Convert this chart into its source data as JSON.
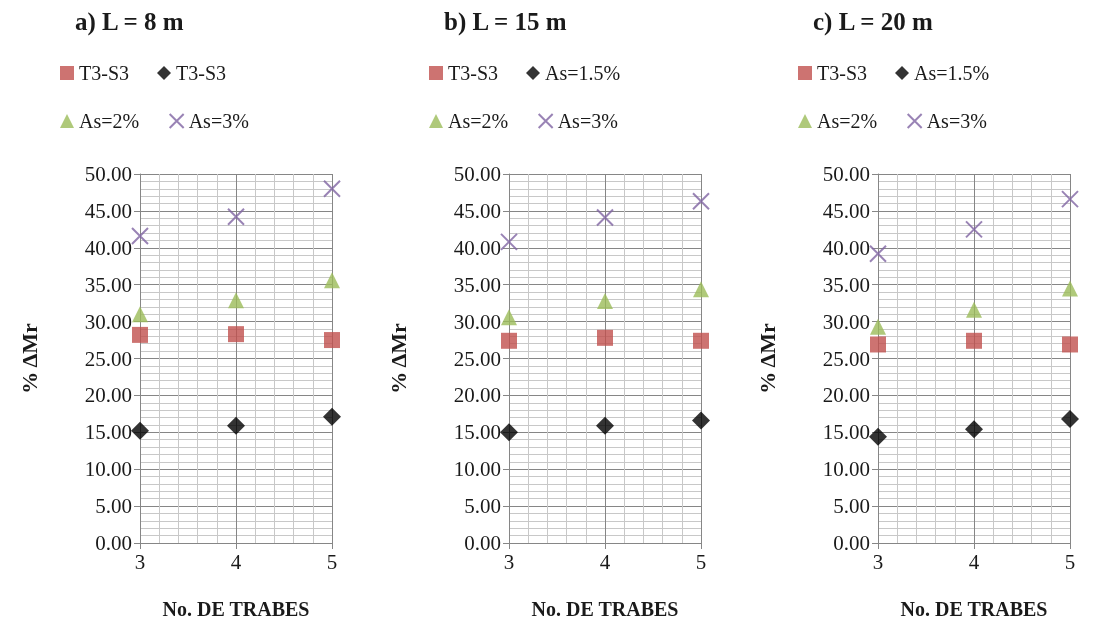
{
  "chart_data": [
    {
      "type": "scatter",
      "title": "a) L = 8 m",
      "xlabel": "No. DE TRABES",
      "ylabel": "% ΔMr",
      "x": [
        3,
        4,
        5
      ],
      "xlim": [
        3,
        5
      ],
      "xticks": [
        3,
        4,
        5
      ],
      "ylim": [
        0,
        50
      ],
      "yticks": [
        {
          "value": 0,
          "label": "0.00"
        },
        {
          "value": 5,
          "label": "5.00"
        },
        {
          "value": 10,
          "label": "10.00"
        },
        {
          "value": 15,
          "label": "15.00"
        },
        {
          "value": 20,
          "label": "20.00"
        },
        {
          "value": 25,
          "label": "25.00"
        },
        {
          "value": 30,
          "label": "30.00"
        },
        {
          "value": 35,
          "label": "35.00"
        },
        {
          "value": 40,
          "label": "40.00"
        },
        {
          "value": 45,
          "label": "45.00"
        },
        {
          "value": 50,
          "label": "50.00"
        }
      ],
      "grid": true,
      "legend": "top",
      "series": [
        {
          "name": "T3-S3",
          "color": "#c0504d",
          "marker": "square",
          "values": [
            28.2,
            28.3,
            27.5
          ]
        },
        {
          "name": "T3-S3",
          "color": "#000000",
          "marker": "diamond",
          "values": [
            15.2,
            15.9,
            17.1
          ]
        },
        {
          "name": "As=2%",
          "color": "#9bbb59",
          "marker": "triangle",
          "values": [
            31.0,
            32.9,
            35.6
          ]
        },
        {
          "name": "As=3%",
          "color": "#8064a2",
          "marker": "cross",
          "values": [
            41.6,
            44.2,
            48.0
          ]
        }
      ]
    },
    {
      "type": "scatter",
      "title": "b) L = 15 m",
      "xlabel": "No. DE TRABES",
      "ylabel": "% ΔMr",
      "x": [
        3,
        4,
        5
      ],
      "xlim": [
        3,
        5
      ],
      "xticks": [
        3,
        4,
        5
      ],
      "ylim": [
        0,
        50
      ],
      "yticks": [
        {
          "value": 0,
          "label": "0.00"
        },
        {
          "value": 5,
          "label": "5.00"
        },
        {
          "value": 10,
          "label": "10.00"
        },
        {
          "value": 15,
          "label": "15.00"
        },
        {
          "value": 20,
          "label": "20.00"
        },
        {
          "value": 25,
          "label": "25.00"
        },
        {
          "value": 30,
          "label": "30.00"
        },
        {
          "value": 35,
          "label": "35.00"
        },
        {
          "value": 40,
          "label": "40.00"
        },
        {
          "value": 45,
          "label": "45.00"
        },
        {
          "value": 50,
          "label": "50.00"
        }
      ],
      "grid": true,
      "legend": "top",
      "series": [
        {
          "name": "T3-S3",
          "color": "#c0504d",
          "marker": "square",
          "values": [
            27.4,
            27.8,
            27.4
          ]
        },
        {
          "name": "As=1.5%",
          "color": "#000000",
          "marker": "diamond",
          "values": [
            15.0,
            15.9,
            16.6
          ]
        },
        {
          "name": "As=2%",
          "color": "#9bbb59",
          "marker": "triangle",
          "values": [
            30.6,
            32.8,
            34.4
          ]
        },
        {
          "name": "As=3%",
          "color": "#8064a2",
          "marker": "cross",
          "values": [
            40.8,
            44.1,
            46.3
          ]
        }
      ]
    },
    {
      "type": "scatter",
      "title": "c) L = 20 m",
      "xlabel": "No. DE TRABES",
      "ylabel": "% ΔMr",
      "x": [
        3,
        4,
        5
      ],
      "xlim": [
        3,
        5
      ],
      "xticks": [
        3,
        4,
        5
      ],
      "ylim": [
        0,
        50
      ],
      "yticks": [
        {
          "value": 0,
          "label": "0.00"
        },
        {
          "value": 5,
          "label": "5.00"
        },
        {
          "value": 10,
          "label": "10.00"
        },
        {
          "value": 15,
          "label": "15.00"
        },
        {
          "value": 20,
          "label": "20.00"
        },
        {
          "value": 25,
          "label": "25.00"
        },
        {
          "value": 30,
          "label": "30.00"
        },
        {
          "value": 35,
          "label": "35.00"
        },
        {
          "value": 40,
          "label": "40.00"
        },
        {
          "value": 45,
          "label": "45.00"
        },
        {
          "value": 50,
          "label": "50.00"
        }
      ],
      "grid": true,
      "legend": "top",
      "series": [
        {
          "name": "T3-S3",
          "color": "#c0504d",
          "marker": "square",
          "values": [
            26.9,
            27.4,
            26.9
          ]
        },
        {
          "name": "As=1.5%",
          "color": "#000000",
          "marker": "diamond",
          "values": [
            14.4,
            15.4,
            16.8
          ]
        },
        {
          "name": "As=2%",
          "color": "#9bbb59",
          "marker": "triangle",
          "values": [
            29.3,
            31.6,
            34.5
          ]
        },
        {
          "name": "As=3%",
          "color": "#8064a2",
          "marker": "cross",
          "values": [
            39.2,
            42.5,
            46.6
          ]
        }
      ]
    }
  ]
}
